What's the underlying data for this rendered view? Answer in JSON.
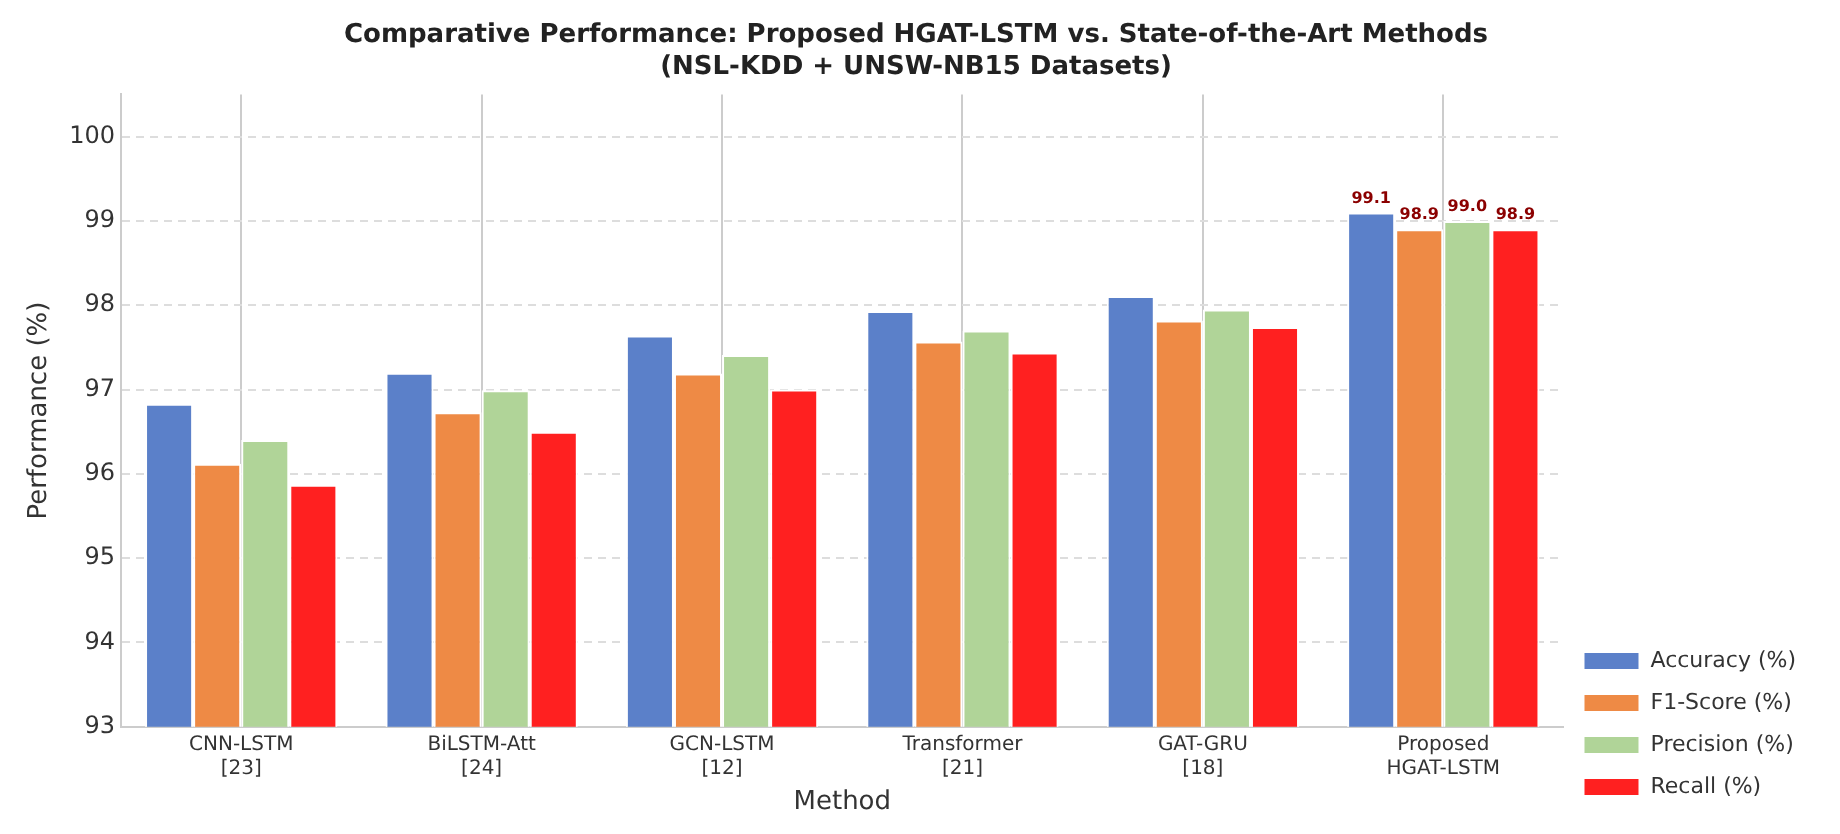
{
  "chart_data": {
    "type": "bar",
    "title": "Comparative Performance: Proposed HGAT-LSTM vs. State-of-the-Art Methods",
    "subtitle": "(NSL-KDD + UNSW-NB15 Datasets)",
    "xlabel": "Method",
    "ylabel": "Performance (%)",
    "categories": [
      "CNN-LSTM\n[23]",
      "BiLSTM-Att\n[24]",
      "GCN-LSTM\n[12]",
      "Transformer\n[21]",
      "GAT-GRU\n[18]",
      "Proposed\nHGAT-LSTM"
    ],
    "series": [
      {
        "name": "Accuracy (%)",
        "color": "#5b80c9",
        "values": [
          96.83,
          97.2,
          97.64,
          97.93,
          98.11,
          99.1
        ],
        "value_labels": [
          null,
          null,
          null,
          null,
          null,
          "99.1"
        ]
      },
      {
        "name": "F1-Score (%)",
        "color": "#ee8a45",
        "values": [
          96.12,
          96.73,
          97.19,
          97.57,
          97.82,
          98.9
        ],
        "value_labels": [
          null,
          null,
          null,
          null,
          null,
          "98.9"
        ]
      },
      {
        "name": "Precision (%)",
        "color": "#b0d498",
        "values": [
          96.4,
          96.99,
          97.41,
          97.7,
          97.95,
          99.0
        ],
        "value_labels": [
          null,
          null,
          null,
          null,
          null,
          "99.0"
        ]
      },
      {
        "name": "Recall (%)",
        "color": "#ff2020",
        "values": [
          95.87,
          96.5,
          97.0,
          97.44,
          97.74,
          98.9
        ],
        "value_labels": [
          null,
          null,
          null,
          null,
          null,
          "98.9"
        ]
      }
    ],
    "ylim": [
      93,
      100.5
    ],
    "yticks": [
      93,
      94,
      95,
      96,
      97,
      98,
      99,
      100
    ],
    "grid": true,
    "legend": "bottom right"
  }
}
